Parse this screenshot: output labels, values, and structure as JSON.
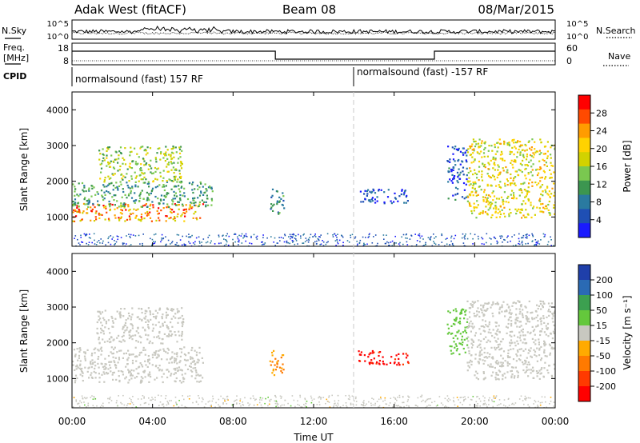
{
  "header": {
    "radar": "Adak West (fitACF)",
    "beam": "Beam 08",
    "date": "08/Mar/2015"
  },
  "strip": {
    "nsky_label": "N.Sky",
    "nsearch_label": "N.Search",
    "noise_tick_high": "10^5",
    "noise_tick_low": "10^0",
    "freq_label_line1": "Freq.",
    "freq_label_line2": "[MHz]",
    "freq_ticks": [
      "18",
      "8"
    ],
    "nave_label": "Nave",
    "nave_ticks": [
      "60",
      "0"
    ],
    "cpid_label": "CPID",
    "cpid_segments": [
      {
        "label": "normalsound (fast) 157 RF",
        "start_hour": 0,
        "end_hour": 14
      },
      {
        "label": "normalsound (fast) -157 RF",
        "start_hour": 14,
        "end_hour": 24
      }
    ]
  },
  "power_panel": {
    "ylabel": "Slant Range [km]",
    "colorbar_label": "Power [dB]",
    "colorbar_ticks": [
      "28",
      "24",
      "20",
      "16",
      "12",
      "8",
      "4"
    ],
    "colorbar_colors": [
      "#ff0000",
      "#ff4a00",
      "#ff9c00",
      "#ffd200",
      "#d2d200",
      "#7ac850",
      "#3c9650",
      "#2a7aa0",
      "#1f4fb4",
      "#1a1aff"
    ]
  },
  "velocity_panel": {
    "ylabel": "Slant Range [km]",
    "colorbar_label": "Velocity [m s⁻¹]",
    "colorbar_ticks": [
      "200",
      "100",
      "50",
      "15",
      "-15",
      "-50",
      "-100",
      "-200"
    ],
    "colorbar_colors": [
      "#1f3faa",
      "#2a6ab4",
      "#3ca050",
      "#64c83c",
      "#c8c8c0",
      "#ffaa00",
      "#ff7a00",
      "#ff3a00",
      "#ff0000"
    ]
  },
  "x_axis": {
    "label": "Time UT",
    "ticks": [
      "00:00",
      "04:00",
      "08:00",
      "12:00",
      "16:00",
      "20:00",
      "00:00"
    ]
  },
  "chart_data": {
    "type": "heatmap",
    "x_range_hours": [
      0,
      24
    ],
    "y_range_km": [
      180,
      4500
    ],
    "yticks": [
      1000,
      2000,
      3000,
      4000
    ],
    "panels": [
      {
        "name": "power",
        "regions": [
          {
            "t0": 0.0,
            "t1": 6.5,
            "r0": 900,
            "r1": 1400,
            "value": 28
          },
          {
            "t0": 0.0,
            "t1": 7.0,
            "r0": 1300,
            "r1": 2000,
            "value": 12
          },
          {
            "t0": 1.3,
            "t1": 5.5,
            "r0": 2000,
            "r1": 3000,
            "value": 16
          },
          {
            "t0": 9.8,
            "t1": 10.5,
            "r0": 1100,
            "r1": 1800,
            "value": 10
          },
          {
            "t0": 14.2,
            "t1": 16.7,
            "r0": 1400,
            "r1": 1800,
            "value": 5
          },
          {
            "t0": 19.6,
            "t1": 24.0,
            "r0": 1000,
            "r1": 3200,
            "value": 20
          },
          {
            "t0": 18.6,
            "t1": 19.6,
            "r0": 1500,
            "r1": 3000,
            "value": 6
          }
        ]
      },
      {
        "name": "velocity",
        "regions": [
          {
            "t0": 0.0,
            "t1": 6.5,
            "r0": 900,
            "r1": 1900,
            "value": 0
          },
          {
            "t0": 1.2,
            "t1": 5.5,
            "r0": 2000,
            "r1": 3000,
            "value": 0
          },
          {
            "t0": 9.8,
            "t1": 10.5,
            "r0": 1100,
            "r1": 1800,
            "value": -80
          },
          {
            "t0": 14.2,
            "t1": 16.7,
            "r0": 1400,
            "r1": 1800,
            "value": -200
          },
          {
            "t0": 18.6,
            "t1": 19.6,
            "r0": 1700,
            "r1": 3000,
            "value": 50
          },
          {
            "t0": 19.6,
            "t1": 24.0,
            "r0": 1000,
            "r1": 3200,
            "value": 0
          }
        ]
      }
    ]
  }
}
